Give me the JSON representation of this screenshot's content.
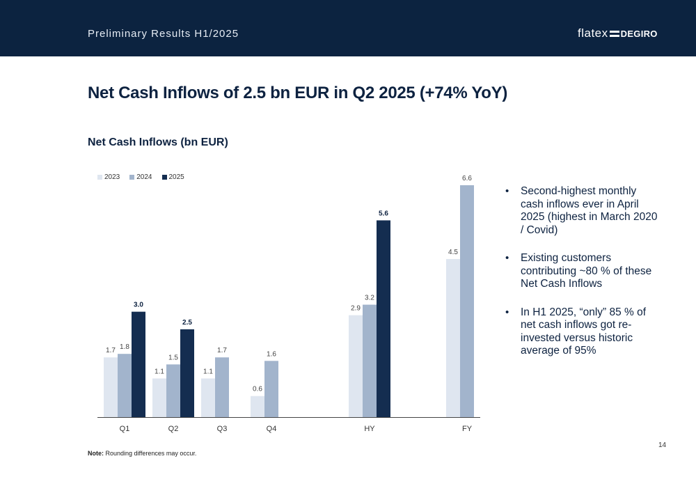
{
  "header": {
    "subtitle": "Preliminary Results H1/2025",
    "logo_part1": "flatex",
    "logo_part2": "DEGIRO"
  },
  "title": "Net Cash Inflows of 2.5 bn EUR in Q2 2025 (+74% YoY)",
  "chart_data": {
    "type": "bar",
    "title": "Net Cash Inflows (bn EUR)",
    "xlabel": "",
    "ylabel": "",
    "categories": [
      "Q1",
      "Q2",
      "Q3",
      "Q4",
      "HY",
      "FY"
    ],
    "series": [
      {
        "name": "2023",
        "color": "#dfe6f0",
        "values": [
          1.7,
          1.1,
          1.1,
          0.6,
          2.9,
          4.5
        ]
      },
      {
        "name": "2024",
        "color": "#a2b4cc",
        "values": [
          1.8,
          1.5,
          1.7,
          1.6,
          3.2,
          6.6
        ]
      },
      {
        "name": "2025",
        "color": "#142d50",
        "values": [
          3.0,
          2.5,
          null,
          null,
          5.6,
          null
        ]
      }
    ],
    "ylim": [
      0,
      6.6
    ],
    "grid": false,
    "legend": "top-left"
  },
  "bullets": [
    "Second-highest monthly cash inflows ever in April 2025 (highest in March 2020 / Covid)",
    "Existing customers contributing ~80 % of these Net Cash Inflows",
    "In H1 2025, “only” 85 % of net cash inflows got re-invested versus historic average of 95%"
  ],
  "note": {
    "label": "Note:",
    "text": " Rounding differences may occur."
  },
  "page_number": "14"
}
